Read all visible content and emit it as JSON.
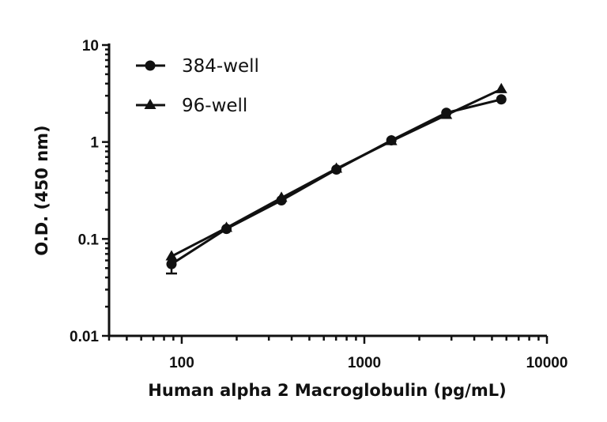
{
  "chart_data": {
    "type": "line",
    "title": "",
    "xlabel": "Human alpha 2 Macroglobulin (pg/mL)",
    "ylabel": "O.D. (450 nm)",
    "xscale": "log",
    "yscale": "log",
    "xlim": [
      40,
      10000
    ],
    "ylim": [
      0.01,
      10
    ],
    "xticks": [
      100,
      1000,
      10000
    ],
    "xtick_labels": [
      "100",
      "1000",
      "10000"
    ],
    "yticks": [
      0.01,
      0.1,
      1,
      10
    ],
    "ytick_labels": [
      "0.01",
      "0.1",
      "1",
      "10"
    ],
    "grid": false,
    "legend_position": "top-left",
    "x": [
      87.9,
      175.8,
      351.6,
      703.1,
      1406,
      2813,
      5625
    ],
    "series": [
      {
        "name": "384-well",
        "marker": "circle",
        "values": [
          0.055,
          0.127,
          0.25,
          0.52,
          1.04,
          2.0,
          2.75
        ],
        "error_low": [
          0.044,
          null,
          null,
          null,
          null,
          null,
          null
        ],
        "error_high": [
          0.065,
          null,
          null,
          null,
          null,
          null,
          null
        ]
      },
      {
        "name": "96-well",
        "marker": "triangle",
        "values": [
          0.066,
          0.13,
          0.265,
          0.53,
          1.02,
          1.9,
          3.5
        ]
      }
    ],
    "color": "#111111"
  }
}
